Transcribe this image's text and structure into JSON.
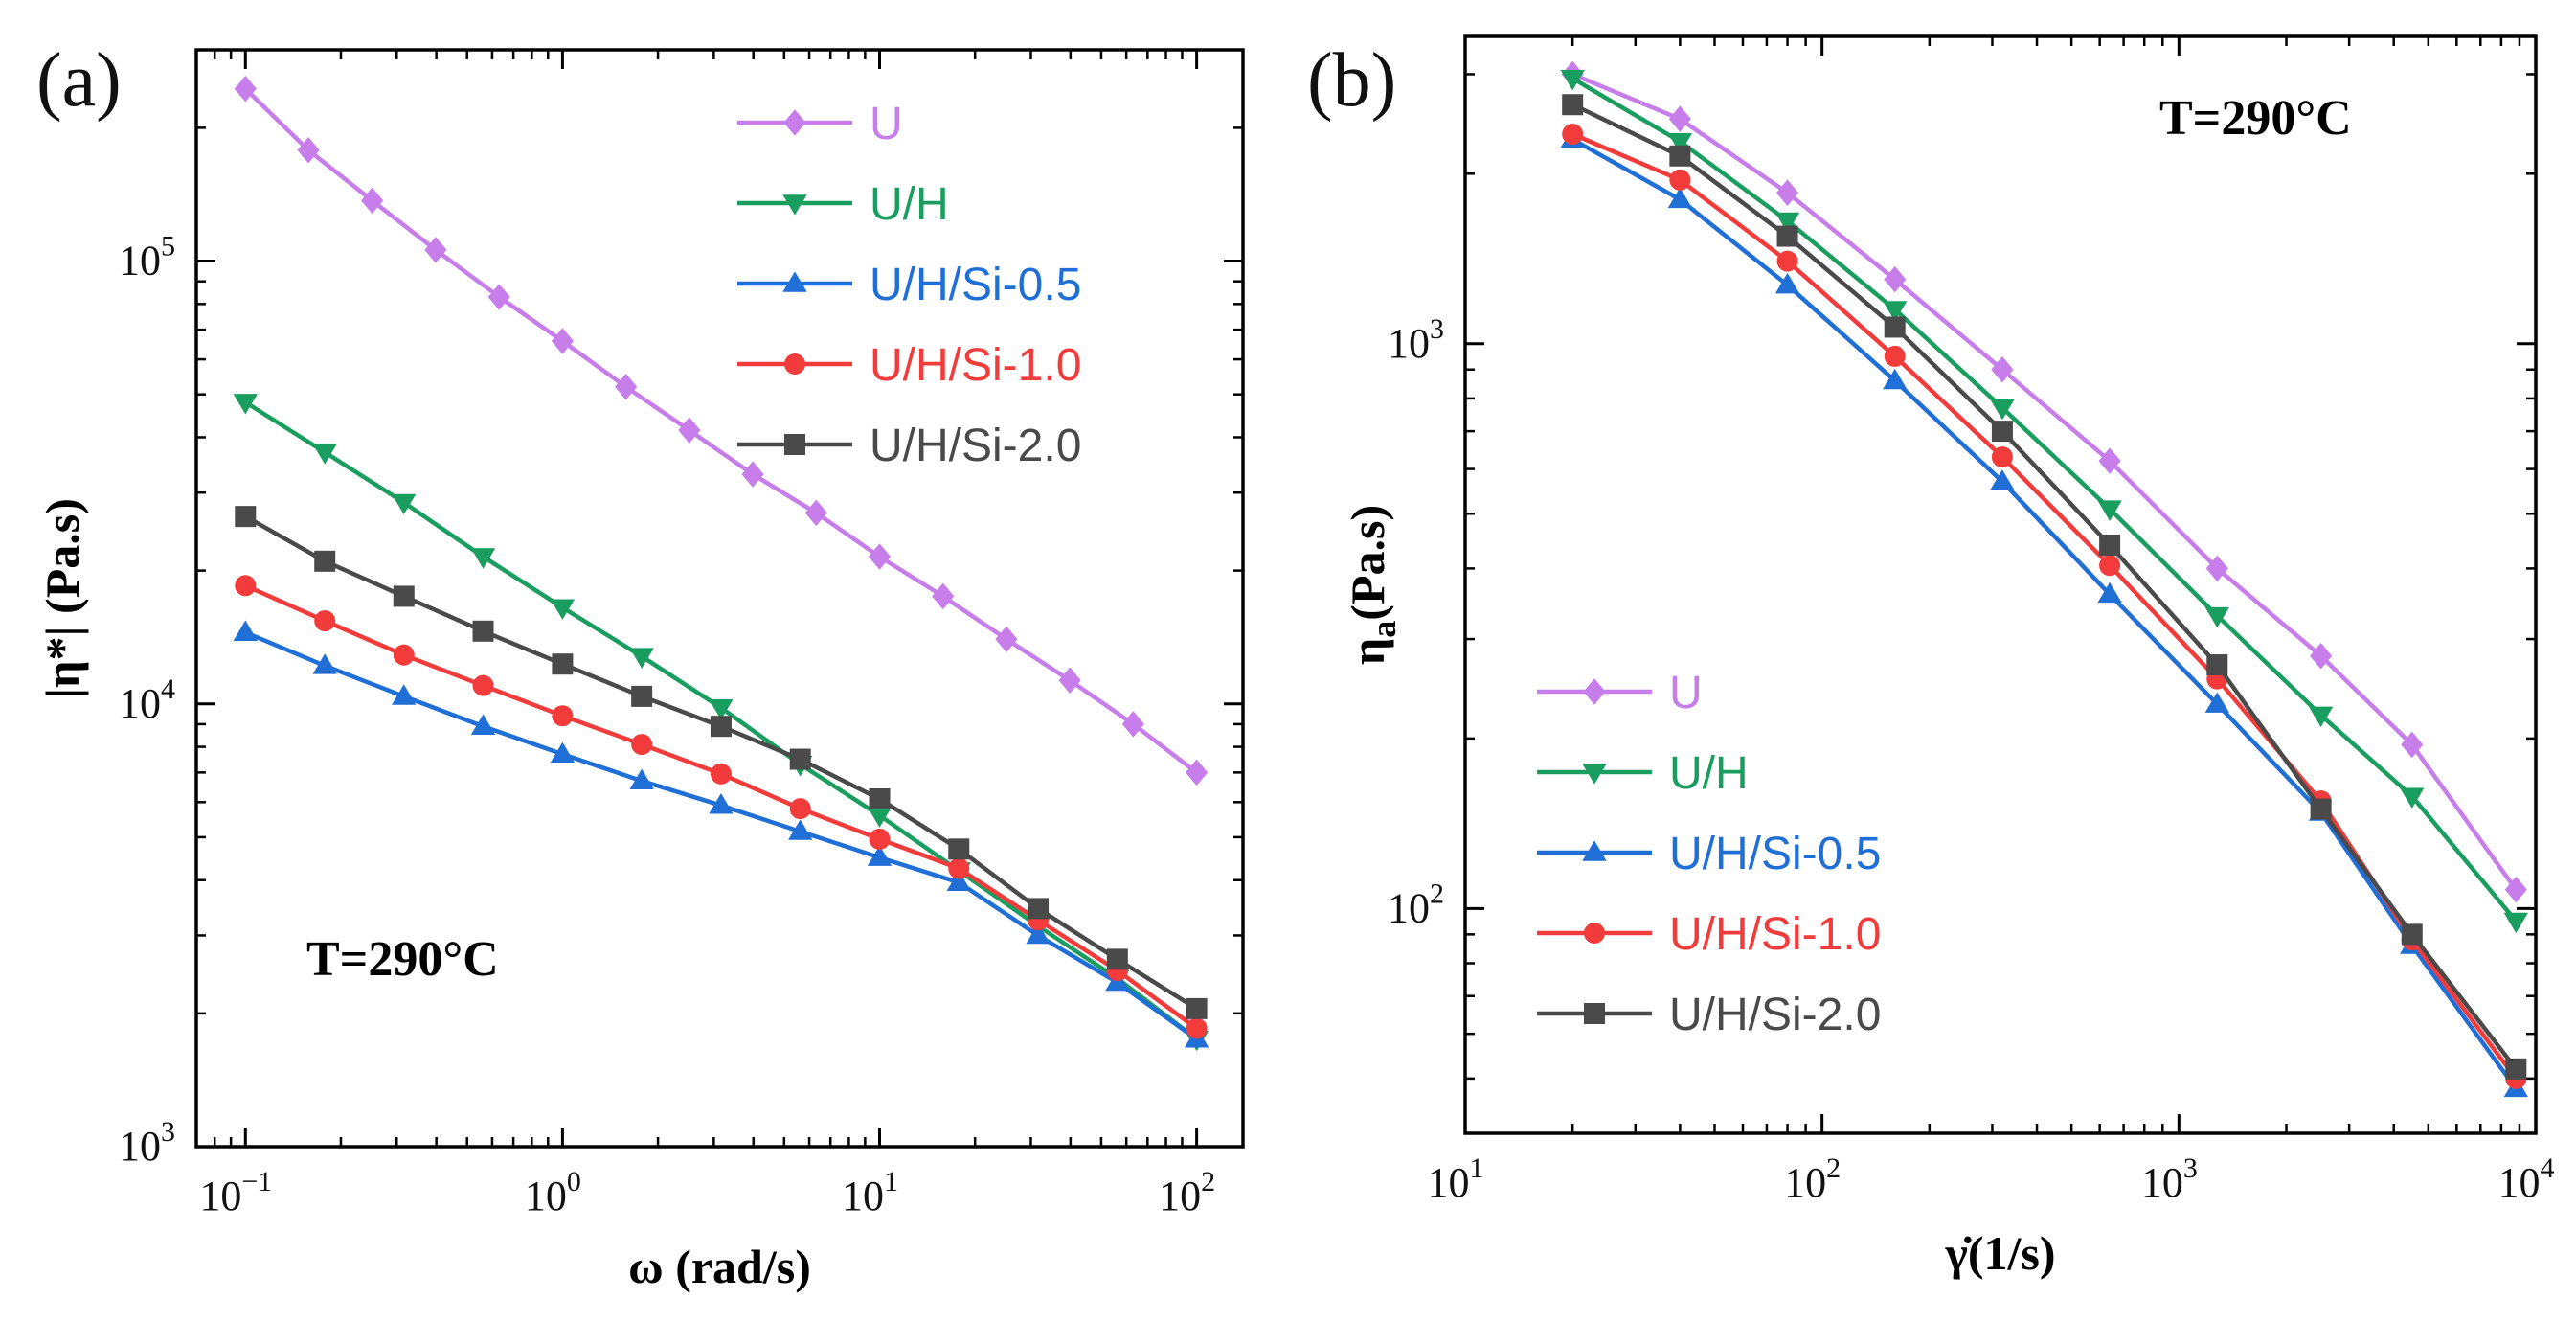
{
  "chart_data": [
    {
      "type": "line",
      "panel": "(a)",
      "xlabel": "ω (rad/s)",
      "ylabel": "|η*| (Pa.s)",
      "xscale": "log",
      "yscale": "log",
      "xlim": [
        0.07,
        140
      ],
      "ylim": [
        1000,
        300000
      ],
      "xticks": [
        {
          "base": "10",
          "exp": "−1",
          "value": 0.1
        },
        {
          "base": "10",
          "exp": "0",
          "value": 1
        },
        {
          "base": "10",
          "exp": "1",
          "value": 10
        },
        {
          "base": "10",
          "exp": "2",
          "value": 100
        }
      ],
      "yticks": [
        {
          "base": "10",
          "exp": "3",
          "value": 1000
        },
        {
          "base": "10",
          "exp": "4",
          "value": 10000
        },
        {
          "base": "10",
          "exp": "5",
          "value": 100000
        }
      ],
      "annotation": "T=290°C",
      "legend_position": "top-right",
      "series": [
        {
          "name": "U",
          "color": "#c77dea",
          "marker": "diamond",
          "x": [
            0.1,
            0.158,
            0.251,
            0.398,
            0.631,
            1,
            1.585,
            2.512,
            3.981,
            6.31,
            10,
            15.85,
            25.12,
            39.81,
            63.1,
            100
          ],
          "y": [
            245000,
            178000,
            137000,
            106000,
            83000,
            66000,
            52000,
            41500,
            33000,
            27000,
            21500,
            17500,
            14000,
            11300,
            9000,
            7000
          ]
        },
        {
          "name": "U/H",
          "color": "#1a9e60",
          "marker": "triangle-down",
          "x": [
            0.1,
            0.178,
            0.316,
            0.562,
            1,
            1.778,
            3.162,
            5.623,
            10,
            17.78,
            31.62,
            56.23,
            100
          ],
          "y": [
            48000,
            37000,
            28500,
            21500,
            16500,
            12800,
            9800,
            7300,
            5600,
            4200,
            3150,
            2400,
            1750
          ]
        },
        {
          "name": "U/H/Si-0.5",
          "color": "#1f6fd6",
          "marker": "triangle-up",
          "x": [
            0.1,
            0.178,
            0.316,
            0.562,
            1,
            1.778,
            3.162,
            5.623,
            10,
            17.78,
            31.62,
            56.23,
            100
          ],
          "y": [
            14500,
            12200,
            10400,
            8900,
            7700,
            6700,
            5900,
            5150,
            4500,
            3950,
            3000,
            2350,
            1750
          ]
        },
        {
          "name": "U/H/Si-1.0",
          "color": "#f23c3c",
          "marker": "circle",
          "x": [
            0.1,
            0.178,
            0.316,
            0.562,
            1,
            1.778,
            3.162,
            5.623,
            10,
            17.78,
            31.62,
            56.23,
            100
          ],
          "y": [
            18500,
            15400,
            12900,
            11000,
            9400,
            8100,
            6950,
            5800,
            4950,
            4250,
            3250,
            2500,
            1850
          ]
        },
        {
          "name": "U/H/Si-2.0",
          "color": "#4a4a4a",
          "marker": "square",
          "x": [
            0.1,
            0.178,
            0.316,
            0.562,
            1,
            1.778,
            3.162,
            5.623,
            10,
            17.78,
            31.62,
            56.23,
            100
          ],
          "y": [
            26500,
            21000,
            17500,
            14600,
            12300,
            10400,
            8900,
            7500,
            6100,
            4700,
            3450,
            2650,
            2050
          ]
        }
      ]
    },
    {
      "type": "line",
      "panel": "(b)",
      "xlabel": "γ̇(1/s)",
      "ylabel": "ηa(Pa.s)",
      "ylabel_main": "η",
      "ylabel_sub": "a",
      "ylabel_tail": "(Pa.s)",
      "xscale": "log",
      "yscale": "log",
      "xlim": [
        10,
        10000
      ],
      "ylim": [
        40,
        3500
      ],
      "xticks": [
        {
          "base": "10",
          "exp": "1",
          "value": 10
        },
        {
          "base": "10",
          "exp": "2",
          "value": 100
        },
        {
          "base": "10",
          "exp": "3",
          "value": 1000
        },
        {
          "base": "10",
          "exp": "4",
          "value": 10000
        }
      ],
      "yticks": [
        {
          "base": "10",
          "exp": "2",
          "value": 100
        },
        {
          "base": "10",
          "exp": "3",
          "value": 1000
        }
      ],
      "annotation": "T=290°C",
      "legend_position": "bottom-left",
      "series": [
        {
          "name": "U",
          "color": "#c77dea",
          "marker": "diamond",
          "x": [
            20,
            40,
            80,
            160,
            320,
            640,
            1280,
            2500,
            4500,
            8800
          ],
          "y": [
            3000,
            2500,
            1850,
            1300,
            900,
            620,
            400,
            280,
            195,
            108
          ]
        },
        {
          "name": "U/H",
          "color": "#1a9e60",
          "marker": "triangle-down",
          "x": [
            20,
            40,
            80,
            160,
            320,
            640,
            1280,
            2500,
            4500,
            8800
          ],
          "y": [
            2950,
            2280,
            1650,
            1150,
            770,
            510,
            330,
            220,
            158,
            95
          ]
        },
        {
          "name": "U/H/Si-0.5",
          "color": "#1f6fd6",
          "marker": "triangle-up",
          "x": [
            20,
            40,
            80,
            160,
            320,
            640,
            1280,
            2500,
            4500,
            8800
          ],
          "y": [
            2300,
            1800,
            1270,
            860,
            570,
            360,
            230,
            148,
            86,
            48
          ]
        },
        {
          "name": "U/H/Si-1.0",
          "color": "#f23c3c",
          "marker": "circle",
          "x": [
            20,
            40,
            80,
            160,
            320,
            640,
            1280,
            2500,
            4500,
            8800
          ],
          "y": [
            2350,
            1950,
            1400,
            950,
            630,
            405,
            255,
            155,
            88,
            50
          ]
        },
        {
          "name": "U/H/Si-2.0",
          "color": "#4a4a4a",
          "marker": "square",
          "x": [
            20,
            40,
            80,
            160,
            320,
            640,
            1280,
            2500,
            4500,
            8800
          ],
          "y": [
            2650,
            2150,
            1550,
            1070,
            700,
            440,
            270,
            150,
            90,
            52
          ]
        }
      ]
    }
  ]
}
